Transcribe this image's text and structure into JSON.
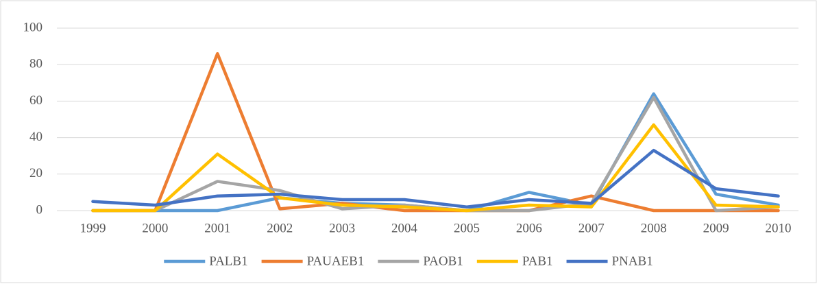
{
  "chart_data": {
    "type": "line",
    "categories": [
      "1999",
      "2000",
      "2001",
      "2002",
      "2003",
      "2004",
      "2005",
      "2006",
      "2007",
      "2008",
      "2009",
      "2010"
    ],
    "series": [
      {
        "name": "PALB1",
        "color": "#5b9bd5",
        "values": [
          0,
          0,
          0,
          7,
          4,
          3,
          0,
          10,
          3,
          64,
          9,
          3
        ]
      },
      {
        "name": "PAUAEB1",
        "color": "#ed7d31",
        "values": [
          0,
          0,
          86,
          1,
          4,
          0,
          0,
          0,
          8,
          0,
          0,
          0
        ]
      },
      {
        "name": "PAOB1",
        "color": "#a5a5a5",
        "values": [
          0,
          0,
          16,
          11,
          1,
          3,
          0,
          0,
          4,
          62,
          0,
          2
        ]
      },
      {
        "name": "PAB1",
        "color": "#ffc000",
        "values": [
          0,
          0,
          31,
          7,
          3,
          2,
          0,
          3,
          2,
          47,
          3,
          2
        ]
      },
      {
        "name": "PNAB1",
        "color": "#4472c4",
        "values": [
          5,
          3,
          8,
          9,
          6,
          6,
          2,
          6,
          4,
          33,
          12,
          8
        ]
      }
    ],
    "ylim": [
      0,
      100
    ],
    "yticks": [
      0,
      20,
      40,
      60,
      80,
      100
    ],
    "grid": true,
    "legend": "bottom"
  }
}
